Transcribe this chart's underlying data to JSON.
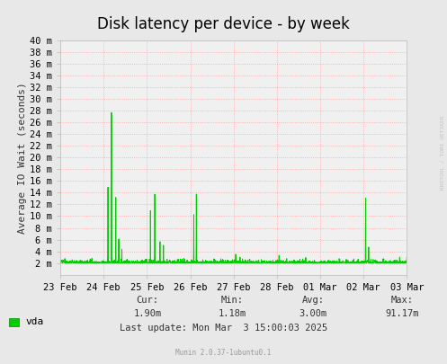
{
  "title": "Disk latency per device - by week",
  "ylabel": "Average IO Wait (seconds)",
  "bg_color": "#e8e8e8",
  "plot_bg_color": "#f0f0f0",
  "grid_color": "#ff9999",
  "line_color": "#00cc00",
  "ytick_labels": [
    "2 m",
    "4 m",
    "6 m",
    "8 m",
    "10 m",
    "12 m",
    "14 m",
    "16 m",
    "18 m",
    "20 m",
    "22 m",
    "24 m",
    "26 m",
    "28 m",
    "30 m",
    "32 m",
    "34 m",
    "36 m",
    "38 m",
    "40 m"
  ],
  "ytick_values": [
    2,
    4,
    6,
    8,
    10,
    12,
    14,
    16,
    18,
    20,
    22,
    24,
    26,
    28,
    30,
    32,
    34,
    36,
    38,
    40
  ],
  "xtick_labels": [
    "23 Feb",
    "24 Feb",
    "25 Feb",
    "26 Feb",
    "27 Feb",
    "28 Feb",
    "01 Mar",
    "02 Mar",
    "03 Mar"
  ],
  "ymax": 40,
  "ymin": 0,
  "legend_label": "vda",
  "legend_color": "#00cc00",
  "cur": "1.90m",
  "min_val": "1.18m",
  "avg": "3.00m",
  "max_val": "91.17m",
  "last_update": "Mon Mar  3 15:00:03 2025",
  "munin_version": "Munin 2.0.37-1ubuntu0.1",
  "rrdtool_text": "RRDTOOL / TOBI OETIKER",
  "title_fontsize": 12,
  "axis_label_fontsize": 8,
  "tick_fontsize": 7.5
}
